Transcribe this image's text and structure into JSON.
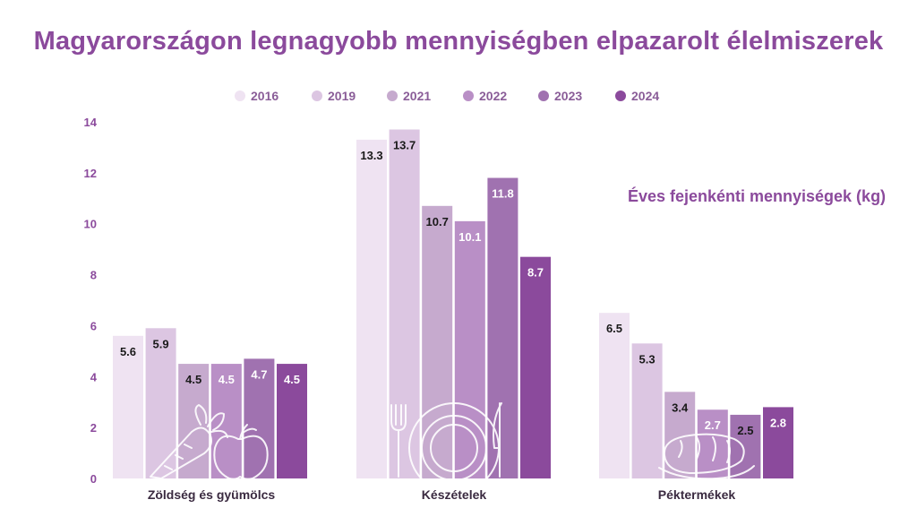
{
  "title": "Magyarországon legnagyobb mennyiségben elpazarolt élelmiszerek",
  "unit_note": "Éves fejenkénti mennyiségek (kg)",
  "colors": {
    "2016": "#efe3f2",
    "2019": "#dcc6e2",
    "2021": "#c6aace",
    "2022": "#b98fc6",
    "2023": "#a072b0",
    "2024": "#8b4a9c",
    "accent": "#8b4a9c"
  },
  "chart_data": {
    "type": "bar",
    "title": "Magyarországon legnagyobb mennyiségben elpazarolt élelmiszerek",
    "categories": [
      "Zöldség és gyümölcs",
      "Készételek",
      "Péktermékek"
    ],
    "series": [
      {
        "name": "2016",
        "values": [
          5.6,
          13.3,
          6.5
        ]
      },
      {
        "name": "2019",
        "values": [
          5.9,
          13.7,
          5.3
        ]
      },
      {
        "name": "2021",
        "values": [
          4.5,
          10.7,
          3.4
        ]
      },
      {
        "name": "2022",
        "values": [
          4.5,
          10.1,
          2.7
        ]
      },
      {
        "name": "2023",
        "values": [
          4.7,
          11.8,
          2.5
        ]
      },
      {
        "name": "2024",
        "values": [
          4.5,
          8.7,
          2.8
        ]
      }
    ],
    "ylim": [
      0,
      14
    ],
    "yticks": [
      0,
      2,
      4,
      6,
      8,
      10,
      12,
      14
    ],
    "legend_position": "top",
    "grid": false,
    "value_labels": true,
    "category_icons": [
      "carrot-apple-icon",
      "fork-plate-knife-icon",
      "bread-icon"
    ]
  }
}
